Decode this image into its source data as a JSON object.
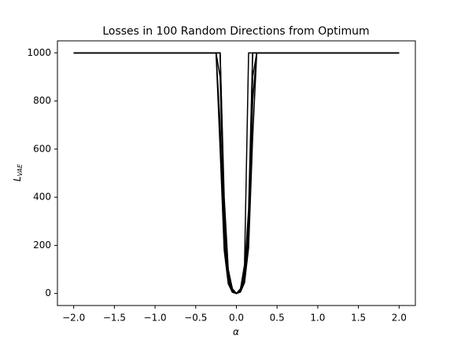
{
  "chart_data": {
    "type": "line",
    "title": "Losses in 100 Random Directions from Optimum",
    "xlabel": "α",
    "ylabel": {
      "main": "L",
      "sub": "VAE"
    },
    "x": [
      -2.0,
      -0.25,
      -0.2,
      -0.15,
      -0.1,
      -0.05,
      0,
      0.05,
      0.1,
      0.15,
      0.2,
      0.25,
      2.0
    ],
    "series": [
      {
        "color": "#000000",
        "values": [
          1000,
          1000,
          900,
          300,
          80,
          15,
          0,
          15,
          80,
          300,
          900,
          1000,
          1000
        ]
      },
      {
        "color": "#000000",
        "values": [
          1000,
          1000,
          1000,
          250,
          60,
          10,
          0,
          12,
          70,
          260,
          1000,
          1000,
          1000
        ]
      },
      {
        "color": "#000000",
        "values": [
          1000,
          1000,
          700,
          200,
          50,
          8,
          0,
          10,
          60,
          220,
          800,
          1000,
          1000
        ]
      },
      {
        "color": "#000000",
        "values": [
          1000,
          1000,
          1000,
          350,
          90,
          20,
          0,
          20,
          90,
          350,
          1000,
          1000,
          1000
        ]
      },
      {
        "color": "#000000",
        "values": [
          1000,
          1000,
          600,
          180,
          40,
          5,
          0,
          6,
          45,
          190,
          650,
          1000,
          1000
        ]
      },
      {
        "color": "#000000",
        "values": [
          1000,
          1000,
          1000,
          400,
          100,
          20,
          0,
          18,
          120,
          1000,
          1000,
          1000,
          1000
        ]
      }
    ],
    "xlim": [
      -2.2,
      2.2
    ],
    "ylim": [
      -50,
      1050
    ],
    "xticks": [
      {
        "value": -2.0,
        "label": "−2.0"
      },
      {
        "value": -1.5,
        "label": "−1.5"
      },
      {
        "value": -1.0,
        "label": "−1.0"
      },
      {
        "value": -0.5,
        "label": "−0.5"
      },
      {
        "value": 0,
        "label": "0.0"
      },
      {
        "value": 0.5,
        "label": "0.5"
      },
      {
        "value": 1.0,
        "label": "1.0"
      },
      {
        "value": 1.5,
        "label": "1.5"
      },
      {
        "value": 2.0,
        "label": "2.0"
      }
    ],
    "yticks": [
      0,
      200,
      400,
      600,
      800,
      1000
    ],
    "grid": false
  }
}
